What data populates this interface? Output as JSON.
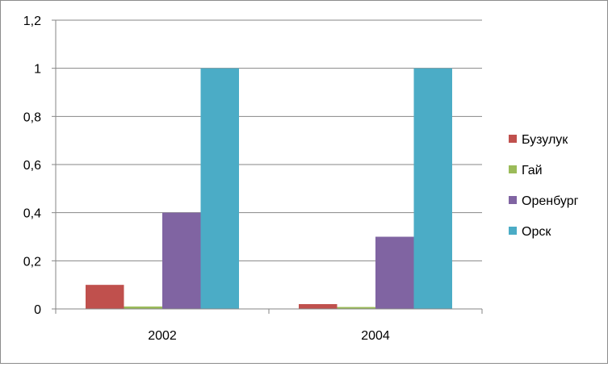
{
  "chart_data": {
    "type": "bar",
    "categories": [
      "2002",
      "2004"
    ],
    "series": [
      {
        "name": "Бузулук",
        "values": [
          0.1,
          0.02
        ],
        "color": "#c0504d"
      },
      {
        "name": "Гай",
        "values": [
          0.01,
          0.008
        ],
        "color": "#9bbb59"
      },
      {
        "name": "Оренбург",
        "values": [
          0.4,
          0.3
        ],
        "color": "#8064a2"
      },
      {
        "name": "Орск",
        "values": [
          1.0,
          1.0
        ],
        "color": "#4bacc6"
      }
    ],
    "yticks": [
      "0",
      "0,2",
      "0,4",
      "0,6",
      "0,8",
      "1",
      "1,2"
    ],
    "ylim": [
      0,
      1.2
    ],
    "grid": true,
    "legend_position": "right"
  }
}
